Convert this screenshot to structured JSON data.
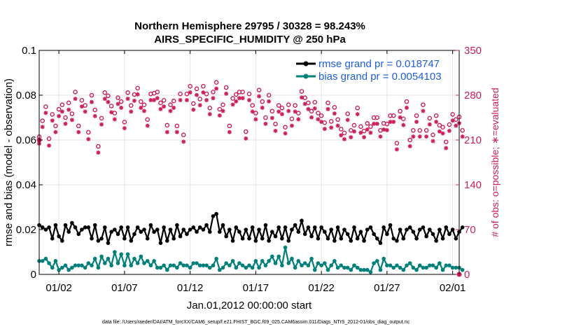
{
  "chart_data": {
    "type": "line",
    "title_line1": "Northern Hemisphere 29795 / 30328 = 98.243%",
    "title_line2": "AIRS_SPECIFIC_HUMIDITY @ 250 hPa",
    "xlabel": "Jan.01,2012 00:00:00 start",
    "ylabel": "rmse and bias (model - observation)",
    "ylabel_right": "# of obs: o=possible; ∗=evaluated",
    "footer": "data file: /Users/raeder/DAI/ATM_forcXX/CAM6_setup/f.e21.FHIST_BGC.f09_025.CAM6assim.011/Diags_NTrS_2012-01/obs_diag_output.nc",
    "xlim": [
      0.5,
      32.5
    ],
    "ylim": [
      0,
      0.1
    ],
    "ylim_right": [
      0,
      350
    ],
    "x_ticks": [
      {
        "value": 2,
        "label": "01/02"
      },
      {
        "value": 7,
        "label": "01/07"
      },
      {
        "value": 12,
        "label": "01/12"
      },
      {
        "value": 17,
        "label": "01/17"
      },
      {
        "value": 22,
        "label": "01/22"
      },
      {
        "value": 27,
        "label": "01/27"
      },
      {
        "value": 32,
        "label": "02/01"
      }
    ],
    "y_ticks": [
      {
        "value": 0,
        "label": "0"
      },
      {
        "value": 0.02,
        "label": "0.02"
      },
      {
        "value": 0.04,
        "label": "0.04"
      },
      {
        "value": 0.06,
        "label": "0.06"
      },
      {
        "value": 0.08,
        "label": "0.08"
      },
      {
        "value": 0.1,
        "label": "0.1"
      }
    ],
    "y_ticks_right": [
      {
        "value": 0,
        "label": "0"
      },
      {
        "value": 70,
        "label": "70"
      },
      {
        "value": 140,
        "label": "140"
      },
      {
        "value": 210,
        "label": "210"
      },
      {
        "value": 280,
        "label": "280"
      },
      {
        "value": 350,
        "label": "350"
      }
    ],
    "x_start": 0.5,
    "x_step": 0.25,
    "series": [
      {
        "name": "rmse grand pr = 0.018747",
        "color": "#000000",
        "axis": "left",
        "values": [
          0.022,
          0.021,
          0.02,
          0.021,
          0.016,
          0.022,
          0.017,
          0.015,
          0.022,
          0.019,
          0.023,
          0.021,
          0.018,
          0.02,
          0.021,
          0.021,
          0.016,
          0.022,
          0.015,
          0.016,
          0.021,
          0.014,
          0.019,
          0.02,
          0.018,
          0.021,
          0.016,
          0.021,
          0.015,
          0.018,
          0.021,
          0.019,
          0.02,
          0.016,
          0.022,
          0.019,
          0.02,
          0.014,
          0.021,
          0.015,
          0.02,
          0.016,
          0.022,
          0.017,
          0.02,
          0.018,
          0.02,
          0.021,
          0.019,
          0.021,
          0.02,
          0.022,
          0.019,
          0.026,
          0.027,
          0.019,
          0.022,
          0.017,
          0.02,
          0.015,
          0.021,
          0.019,
          0.016,
          0.02,
          0.016,
          0.021,
          0.015,
          0.02,
          0.016,
          0.022,
          0.015,
          0.019,
          0.017,
          0.021,
          0.016,
          0.021,
          0.015,
          0.02,
          0.022,
          0.019,
          0.024,
          0.018,
          0.021,
          0.017,
          0.021,
          0.016,
          0.021,
          0.019,
          0.016,
          0.02,
          0.015,
          0.021,
          0.016,
          0.02,
          0.018,
          0.015,
          0.021,
          0.016,
          0.019,
          0.015,
          0.02,
          0.021,
          0.018,
          0.016,
          0.014,
          0.021,
          0.018,
          0.022,
          0.016,
          0.015,
          0.02,
          0.016,
          0.02,
          0.021,
          0.019,
          0.016,
          0.02,
          0.021,
          0.017,
          0.02,
          0.018,
          0.015,
          0.02,
          0.016,
          0.021,
          0.018,
          0.02,
          0.016,
          0.019,
          0.021
        ]
      },
      {
        "name": "bias grand pr = 0.0054103",
        "color": "#00807a",
        "axis": "left",
        "values": [
          0.006,
          0.006,
          0.007,
          0.005,
          0.003,
          0.006,
          0.002,
          0.003,
          0.004,
          0.002,
          0.003,
          0.004,
          0.004,
          0.004,
          0.003,
          0.005,
          0.004,
          0.007,
          0.003,
          0.008,
          0.005,
          0.007,
          0.004,
          0.01,
          0.005,
          0.009,
          0.004,
          0.009,
          0.004,
          0.007,
          0.005,
          0.008,
          0.005,
          0.006,
          0.004,
          0.006,
          0.003,
          0.003,
          0.004,
          0.002,
          0.004,
          0.004,
          0.003,
          0.005,
          0.004,
          0.004,
          0.003,
          0.005,
          0.005,
          0.004,
          0.004,
          0.004,
          0.003,
          0.004,
          0.007,
          0.002,
          0.003,
          0.005,
          0.004,
          0.006,
          0.003,
          0.005,
          0.004,
          0.003,
          0.004,
          0.003,
          0.006,
          0.003,
          0.006,
          0.004,
          0.006,
          0.008,
          0.005,
          0.008,
          0.004,
          0.012,
          0.005,
          0.007,
          0.003,
          0.006,
          0.004,
          0.005,
          0.004,
          0.007,
          0.002,
          0.005,
          0.004,
          0.005,
          0.002,
          0.004,
          0.006,
          0.003,
          0.004,
          0.003,
          0.003,
          0.002,
          0.004,
          0.003,
          0.002,
          0.002,
          0.002,
          0.001,
          0.005,
          0.006,
          0.002,
          0.007,
          0.004,
          0.004,
          0.003,
          0.004,
          0.003,
          0.002,
          0.004,
          0.005,
          0.003,
          0.002,
          0.004,
          0.003,
          0.003,
          0.004,
          0.004,
          0.003,
          0.005,
          0.002,
          0.004,
          0.004,
          0.003,
          0.003,
          0.003,
          0.002
        ]
      }
    ],
    "obs_possible": {
      "name": "possible (o)",
      "color": "#cc1f5a",
      "axis": "right",
      "values": [
        215,
        240,
        262,
        212,
        250,
        232,
        258,
        265,
        245,
        268,
        251,
        285,
        232,
        272,
        264,
        222,
        280,
        257,
        200,
        244,
        284,
        279,
        263,
        252,
        276,
        270,
        238,
        284,
        264,
        281,
        291,
        270,
        265,
        242,
        282,
        283,
        285,
        268,
        272,
        233,
        265,
        271,
        232,
        282,
        218,
        282,
        294,
        267,
        290,
        274,
        294,
        282,
        260,
        285,
        300,
        258,
        265,
        292,
        232,
        275,
        281,
        285,
        285,
        223,
        282,
        264,
        252,
        288,
        270,
        245,
        280,
        255,
        235,
        264,
        260,
        230,
        265,
        243,
        264,
        252,
        286,
        276,
        268,
        255,
        269,
        252,
        248,
        237,
        268,
        239,
        261,
        242,
        227,
        221,
        251,
        225,
        233,
        260,
        231,
        224,
        236,
        231,
        245,
        245,
        225,
        236,
        235,
        248,
        248,
        205,
        255,
        243,
        270,
        210,
        225,
        248,
        225,
        265,
        225,
        244,
        218,
        248,
        233,
        230,
        207,
        234,
        250,
        242,
        246,
        225
      ]
    },
    "obs_evaluated": {
      "name": "evaluated (∗)",
      "color": "#cc1f5a",
      "axis": "right",
      "values": [
        212,
        238,
        260,
        209,
        248,
        230,
        255,
        262,
        243,
        265,
        249,
        282,
        230,
        270,
        262,
        219,
        277,
        255,
        198,
        242,
        282,
        277,
        261,
        250,
        274,
        268,
        236,
        282,
        262,
        279,
        289,
        268,
        263,
        240,
        280,
        280,
        283,
        266,
        270,
        230,
        263,
        268,
        230,
        280,
        215,
        280,
        292,
        265,
        288,
        272,
        292,
        280,
        258,
        283,
        298,
        256,
        263,
        290,
        230,
        273,
        278,
        283,
        283,
        220,
        280,
        262,
        250,
        286,
        268,
        243,
        278,
        252,
        232,
        262,
        258,
        228,
        263,
        240,
        262,
        250,
        284,
        274,
        266,
        253,
        267,
        250,
        246,
        235,
        266,
        237,
        259,
        240,
        225,
        219,
        249,
        222,
        231,
        258,
        229,
        222,
        234,
        229,
        243,
        243,
        223,
        234,
        233,
        246,
        246,
        203,
        253,
        241,
        268,
        208,
        223,
        246,
        223,
        263,
        223,
        242,
        216,
        246,
        231,
        228,
        205,
        232,
        248,
        240,
        244,
        223
      ]
    },
    "obs_special": [
      {
        "name": "early start marker",
        "x": 0.5,
        "y": 210
      },
      {
        "name": "end-of-period marker",
        "x": 32.5,
        "y": 0
      }
    ]
  }
}
